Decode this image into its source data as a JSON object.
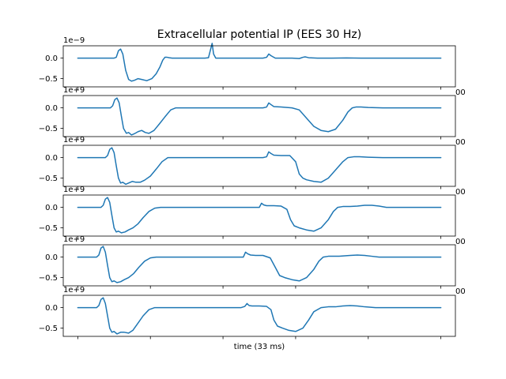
{
  "chart_data": {
    "type": "line",
    "title": "Extracellular potential IP (EES 30 Hz)",
    "xlabel": "time (33 ms)",
    "ylabel": "",
    "y_tick_labels": [
      "0.0",
      "−0.5"
    ],
    "y_ticks": [
      0.0,
      -0.5
    ],
    "y_offset_label": "1e−9",
    "y_offset_label_overlapped": "1e+9",
    "clipped_tick_fragment": "00",
    "x_ticks_labeled": false,
    "x_range": [
      -2,
      52
    ],
    "x_tick_positions": [
      0,
      10,
      20,
      30,
      40,
      50
    ],
    "ylim": [
      -0.7,
      0.3
    ],
    "grid": false,
    "line_color": "#1f77b4",
    "subplots": [
      {
        "series": {
          "x": [
            0,
            5,
            5.3,
            5.6,
            5.9,
            6.2,
            6.6,
            7.0,
            7.4,
            7.8,
            8.3,
            8.8,
            9.5,
            10.2,
            10.8,
            11.3,
            11.7,
            12.0,
            12.3,
            12.6,
            13.0,
            13.5,
            14.0,
            14.8,
            15.5,
            16.5,
            17.5,
            18.0,
            18.3,
            18.5,
            18.7,
            19.0,
            19.5,
            20.5,
            21.5,
            22.5,
            23.5,
            25.5,
            26.0,
            26.3,
            26.6,
            27.2,
            28.0,
            29.5,
            30.5,
            31.0,
            31.3,
            31.8,
            33.0,
            35.0,
            37.0,
            39.0,
            42.0,
            45.0,
            48.0,
            50
          ],
          "y": [
            0,
            0,
            0.02,
            0.18,
            0.22,
            0.1,
            -0.3,
            -0.52,
            -0.56,
            -0.54,
            -0.5,
            -0.52,
            -0.55,
            -0.5,
            -0.38,
            -0.22,
            -0.05,
            0.02,
            0.02,
            0.01,
            0.0,
            0.0,
            0.0,
            0.0,
            0.0,
            0.0,
            0.0,
            0.01,
            0.22,
            0.36,
            0.1,
            0.0,
            0.0,
            0.0,
            0.0,
            0.0,
            0.0,
            0.0,
            0.02,
            0.1,
            0.06,
            0.0,
            0.0,
            0.0,
            -0.01,
            0.02,
            0.03,
            0.01,
            0.0,
            0.0,
            0.005,
            0.0,
            0.0,
            0.0,
            0.0,
            0
          ]
        }
      },
      {
        "series": {
          "x": [
            0,
            4.5,
            4.8,
            5.1,
            5.4,
            5.7,
            6.0,
            6.3,
            6.7,
            7.0,
            7.4,
            7.8,
            8.3,
            8.8,
            9.3,
            9.8,
            10.5,
            11.2,
            12.0,
            12.8,
            13.5,
            14.2,
            15.0,
            16.0,
            17.0,
            18.0,
            19.5,
            20.5,
            21.5,
            23.0,
            24.5,
            25.5,
            26.0,
            26.3,
            26.6,
            27.0,
            28.0,
            29.5,
            30.5,
            31.5,
            32.5,
            33.5,
            34.5,
            35.5,
            36.5,
            37.2,
            37.8,
            38.3,
            39.0,
            40.0,
            42.0,
            44.0,
            46.0,
            48.0,
            50
          ],
          "y": [
            0,
            0,
            0.05,
            0.2,
            0.24,
            0.12,
            -0.2,
            -0.5,
            -0.62,
            -0.6,
            -0.66,
            -0.63,
            -0.58,
            -0.55,
            -0.6,
            -0.62,
            -0.55,
            -0.4,
            -0.22,
            -0.05,
            0.0,
            0.0,
            0.0,
            0.0,
            0.0,
            0.0,
            0.0,
            0.0,
            0.0,
            0.0,
            0.0,
            0.0,
            0.02,
            0.12,
            0.08,
            0.03,
            0.02,
            0.0,
            -0.05,
            -0.25,
            -0.45,
            -0.55,
            -0.58,
            -0.52,
            -0.3,
            -0.1,
            0.0,
            0.02,
            0.02,
            0.01,
            0.0,
            0.0,
            0.0,
            0.0,
            0
          ]
        }
      },
      {
        "series": {
          "x": [
            0,
            3.8,
            4.1,
            4.4,
            4.7,
            5.0,
            5.3,
            5.6,
            5.9,
            6.2,
            6.6,
            7.0,
            7.5,
            8.0,
            8.6,
            9.2,
            10.0,
            10.8,
            11.6,
            12.4,
            13.2,
            14.0,
            15.0,
            17.0,
            19.0,
            21.0,
            23.0,
            24.5,
            25.5,
            26.0,
            26.3,
            26.6,
            27.0,
            28.0,
            29.2,
            30.0,
            30.5,
            31.0,
            31.5,
            32.5,
            33.5,
            34.5,
            35.5,
            36.5,
            37.2,
            38.0,
            38.8,
            40.0,
            42.0,
            44.0,
            46.0,
            48.0,
            50
          ],
          "y": [
            0,
            0,
            0.05,
            0.2,
            0.24,
            0.12,
            -0.2,
            -0.5,
            -0.62,
            -0.6,
            -0.65,
            -0.62,
            -0.58,
            -0.6,
            -0.6,
            -0.55,
            -0.45,
            -0.28,
            -0.1,
            0.0,
            0.0,
            0.0,
            0.0,
            0.0,
            0.0,
            0.0,
            0.0,
            0.0,
            0.0,
            0.02,
            0.14,
            0.1,
            0.06,
            0.05,
            0.05,
            -0.1,
            -0.4,
            -0.5,
            -0.54,
            -0.58,
            -0.6,
            -0.5,
            -0.3,
            -0.1,
            0.0,
            0.02,
            0.02,
            0.01,
            0.0,
            0.0,
            0.0,
            0.0,
            0
          ]
        }
      },
      {
        "series": {
          "x": [
            0,
            3.2,
            3.5,
            3.8,
            4.1,
            4.4,
            4.7,
            5.0,
            5.3,
            5.6,
            6.0,
            6.5,
            7.0,
            7.6,
            8.3,
            9.0,
            9.8,
            10.6,
            11.4,
            12.2,
            13.0,
            14.0,
            16.0,
            18.0,
            20.0,
            22.0,
            24.0,
            25.0,
            25.3,
            25.6,
            26.0,
            27.0,
            28.0,
            28.8,
            29.3,
            29.8,
            30.5,
            31.5,
            32.5,
            33.5,
            34.5,
            35.2,
            35.8,
            36.5,
            37.5,
            38.5,
            39.5,
            40.5,
            41.5,
            42.5,
            44.0,
            46.0,
            48.0,
            50
          ],
          "y": [
            0,
            0,
            0.05,
            0.2,
            0.24,
            0.12,
            -0.2,
            -0.5,
            -0.6,
            -0.58,
            -0.62,
            -0.6,
            -0.55,
            -0.5,
            -0.4,
            -0.25,
            -0.1,
            -0.02,
            0.0,
            0.0,
            0.0,
            0.0,
            0.0,
            0.0,
            0.0,
            0.0,
            0.0,
            0.0,
            0.1,
            0.06,
            0.04,
            0.04,
            0.03,
            -0.05,
            -0.3,
            -0.45,
            -0.5,
            -0.55,
            -0.58,
            -0.5,
            -0.3,
            -0.1,
            0.0,
            0.02,
            0.02,
            0.03,
            0.05,
            0.05,
            0.03,
            0.0,
            0.0,
            0.0,
            0.0,
            0
          ]
        }
      },
      {
        "series": {
          "x": [
            0,
            2.6,
            2.9,
            3.2,
            3.5,
            3.8,
            4.1,
            4.4,
            4.7,
            5.0,
            5.4,
            5.9,
            6.4,
            7.0,
            7.7,
            8.4,
            9.2,
            10.0,
            10.8,
            11.6,
            12.5,
            14.0,
            16.0,
            18.0,
            20.0,
            22.0,
            22.8,
            23.1,
            23.4,
            23.8,
            24.5,
            25.5,
            26.5,
            27.2,
            27.8,
            28.5,
            29.5,
            30.5,
            31.5,
            32.5,
            33.2,
            33.8,
            34.5,
            36.0,
            37.5,
            38.5,
            39.5,
            40.5,
            41.5,
            43.0,
            45.0,
            48.0,
            50
          ],
          "y": [
            0,
            0,
            0.05,
            0.22,
            0.26,
            0.12,
            -0.2,
            -0.5,
            -0.6,
            -0.58,
            -0.62,
            -0.6,
            -0.55,
            -0.5,
            -0.4,
            -0.25,
            -0.1,
            -0.02,
            0.0,
            0.0,
            0.0,
            0.0,
            0.0,
            0.0,
            0.0,
            0.0,
            0.0,
            0.12,
            0.08,
            0.05,
            0.04,
            0.04,
            -0.02,
            -0.25,
            -0.45,
            -0.5,
            -0.55,
            -0.58,
            -0.5,
            -0.3,
            -0.1,
            0.0,
            0.02,
            0.02,
            0.04,
            0.05,
            0.04,
            0.02,
            0.0,
            0.0,
            0.0,
            0.0,
            0
          ]
        }
      },
      {
        "series": {
          "x": [
            0,
            2.6,
            2.9,
            3.2,
            3.5,
            3.8,
            4.1,
            4.4,
            4.7,
            5.0,
            5.4,
            5.9,
            6.4,
            7.0,
            7.6,
            8.2,
            9.0,
            9.8,
            10.6,
            11.4,
            12.2,
            13.0,
            15.0,
            17.0,
            19.0,
            21.0,
            22.5,
            23.0,
            23.3,
            23.6,
            24.0,
            25.0,
            26.0,
            26.6,
            27.0,
            27.5,
            28.2,
            29.0,
            30.0,
            31.0,
            31.8,
            32.5,
            33.5,
            34.5,
            35.5,
            36.5,
            37.5,
            38.5,
            39.5,
            41.0,
            43.0,
            45.0,
            48.0,
            50
          ],
          "y": [
            0,
            0,
            0.05,
            0.2,
            0.24,
            0.1,
            -0.2,
            -0.5,
            -0.6,
            -0.58,
            -0.64,
            -0.6,
            -0.6,
            -0.62,
            -0.55,
            -0.4,
            -0.2,
            -0.05,
            0.0,
            0.0,
            0.0,
            0.0,
            0.0,
            0.0,
            0.0,
            0.0,
            0.0,
            0.03,
            0.1,
            0.05,
            0.04,
            0.04,
            0.03,
            -0.05,
            -0.3,
            -0.45,
            -0.5,
            -0.55,
            -0.58,
            -0.5,
            -0.3,
            -0.1,
            0.0,
            0.02,
            0.02,
            0.04,
            0.05,
            0.04,
            0.02,
            0.0,
            0.0,
            0.0,
            0.0,
            0
          ]
        }
      }
    ]
  }
}
